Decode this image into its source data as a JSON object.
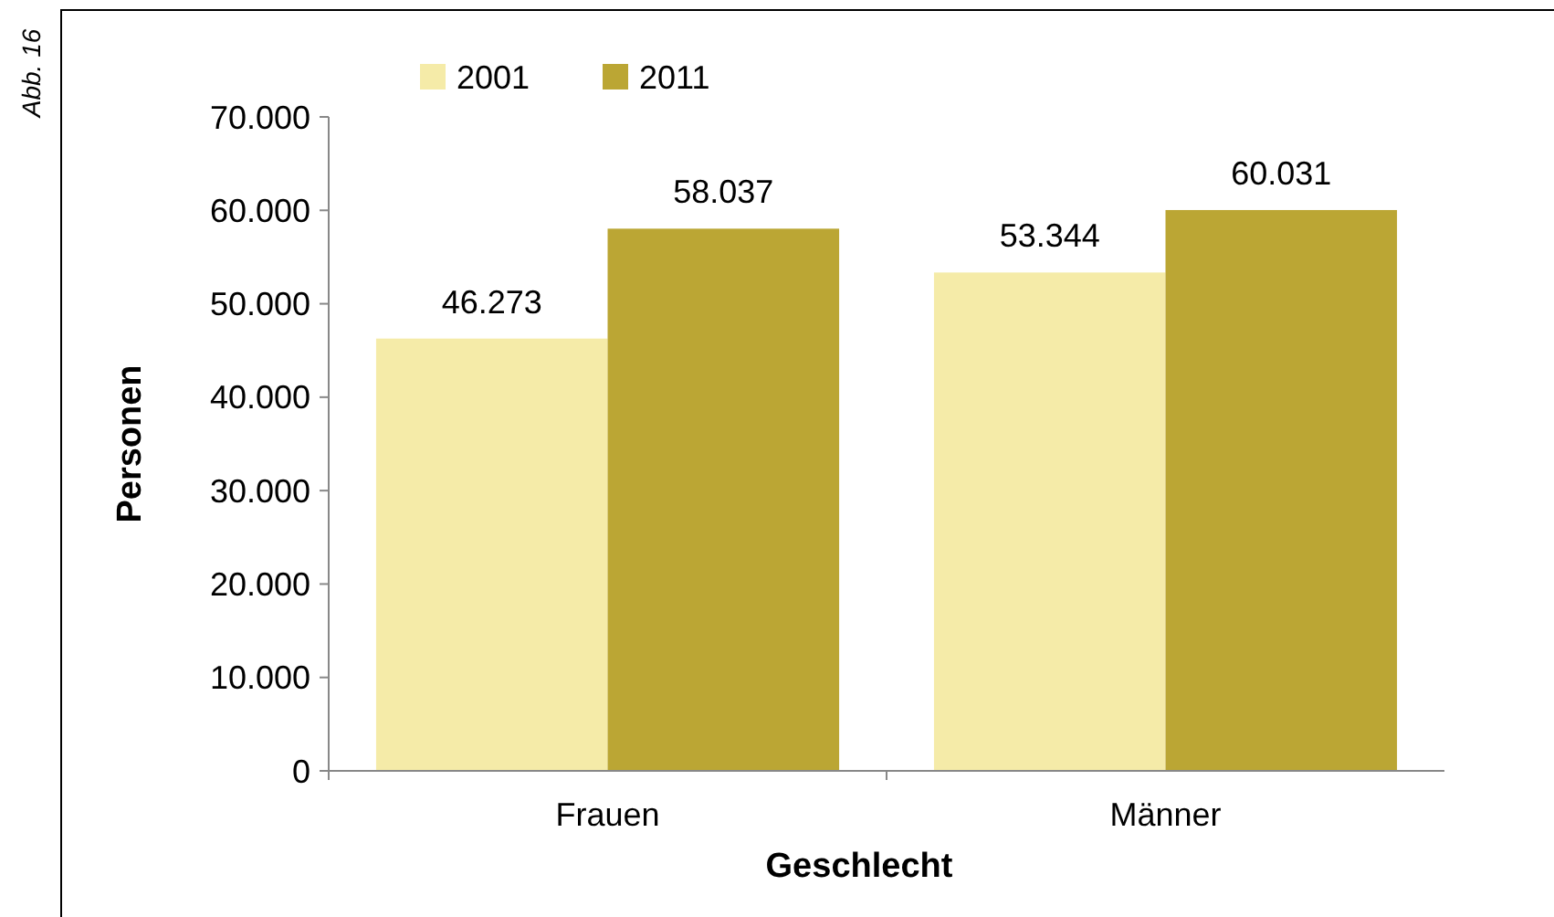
{
  "chart_data": {
    "type": "bar",
    "xlabel": "Geschlecht",
    "ylabel": "Personen",
    "annotations": [
      "Abb. 16"
    ],
    "categories": [
      "Frauen",
      "Männer"
    ],
    "series": [
      {
        "name": "2001",
        "color": "#f5eba8",
        "values": [
          46273,
          53344
        ],
        "value_labels": [
          "46.273",
          "53.344"
        ]
      },
      {
        "name": "2011",
        "color": "#bba634",
        "values": [
          58037,
          60031
        ],
        "value_labels": [
          "58.037",
          "60.031"
        ]
      }
    ],
    "ylim": [
      0,
      70000
    ],
    "yticks": [
      0,
      {
        "value": 10000,
        "label": "10.000"
      },
      {
        "value": 20000,
        "label": "20.000"
      },
      {
        "value": 30000,
        "label": "30.000"
      },
      {
        "value": 40000,
        "label": "40.000"
      },
      {
        "value": 50000,
        "label": "50.000"
      },
      {
        "value": 60000,
        "label": "60.000"
      },
      {
        "value": 70000,
        "label": "70.000"
      }
    ],
    "grid": false,
    "legend": "top left"
  }
}
